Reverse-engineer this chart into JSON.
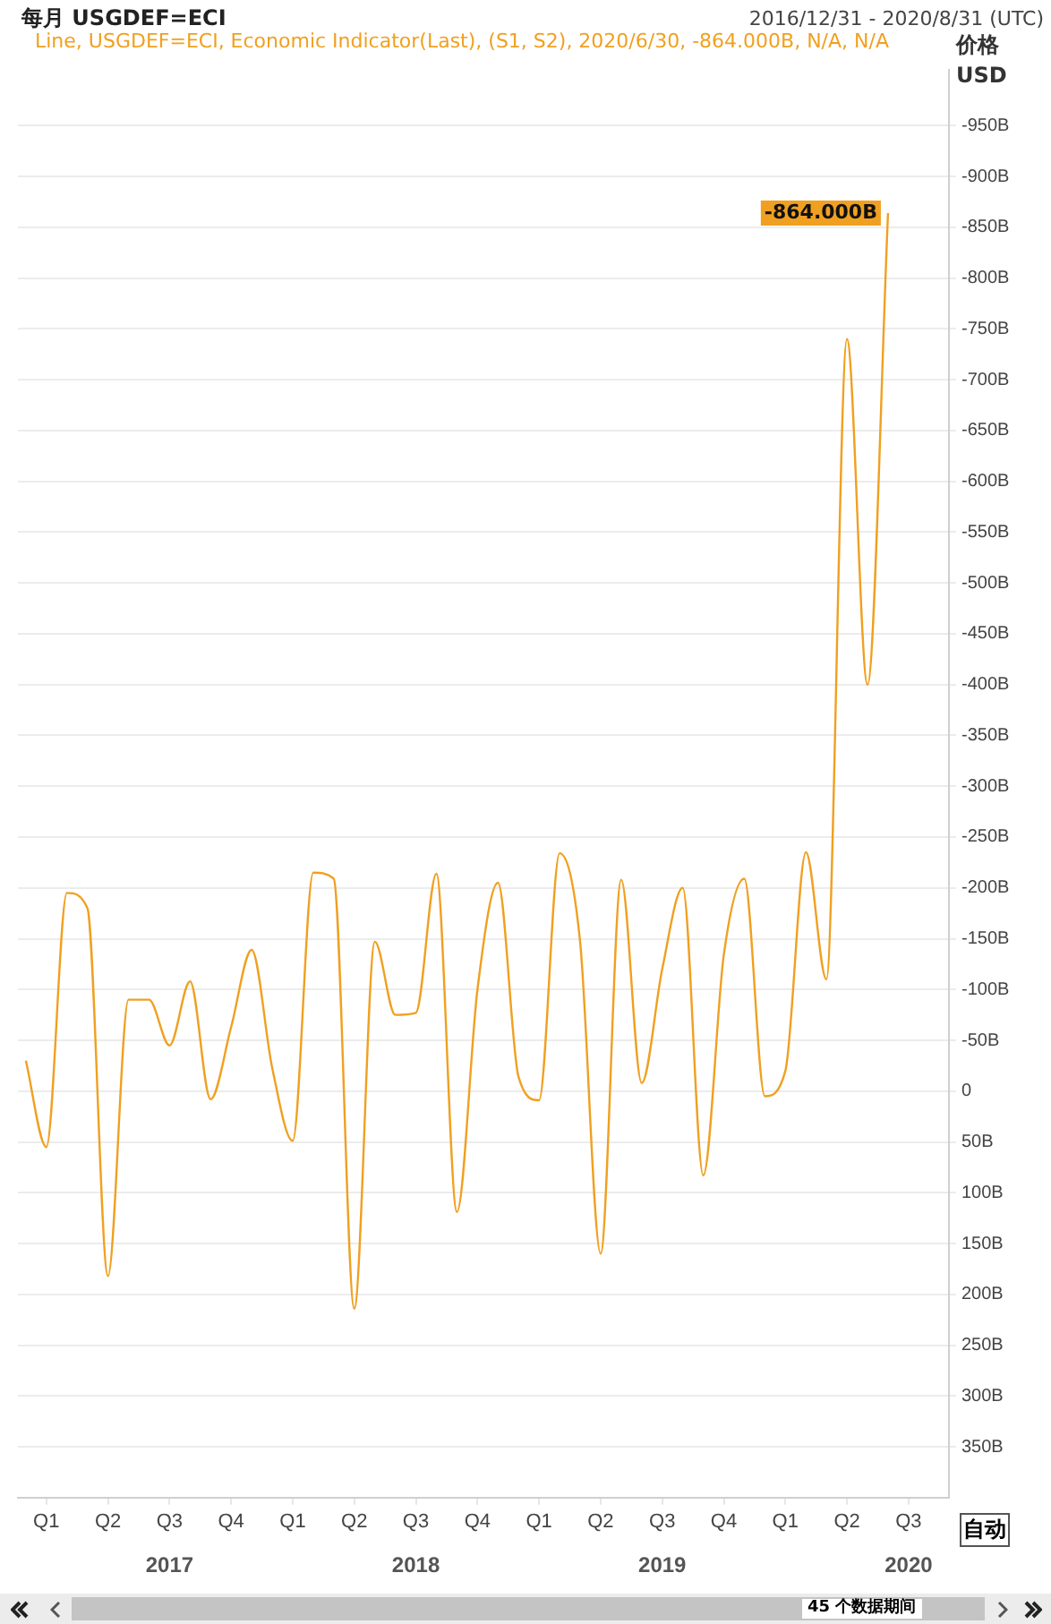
{
  "chart_data": {
    "type": "line",
    "title": "每月 USGDEF=ECI",
    "subtitle": "2016/12/31 - 2020/8/31 (UTC)",
    "ylabel": "价格 USD",
    "x": [
      "2016-12",
      "2017-01",
      "2017-02",
      "2017-03",
      "2017-04",
      "2017-05",
      "2017-06",
      "2017-07",
      "2017-08",
      "2017-09",
      "2017-10",
      "2017-11",
      "2017-12",
      "2018-01",
      "2018-02",
      "2018-03",
      "2018-04",
      "2018-05",
      "2018-06",
      "2018-07",
      "2018-08",
      "2018-09",
      "2018-10",
      "2018-11",
      "2018-12",
      "2019-01",
      "2019-02",
      "2019-03",
      "2019-04",
      "2019-05",
      "2019-06",
      "2019-07",
      "2019-08",
      "2019-09",
      "2019-10",
      "2019-11",
      "2019-12",
      "2020-01",
      "2020-02",
      "2020-03",
      "2020-04",
      "2020-05",
      "2020-06"
    ],
    "series": [
      {
        "name": "Line, USGDEF=ECI, Economic Indicator(Last), (S1, S2), 2020/6/30, -864.000B, N/A, N/A",
        "color": "#f0a020",
        "values": [
          -30,
          55,
          -195,
          -180,
          182,
          -90,
          -90,
          -45,
          -108,
          8,
          -63,
          -139,
          -23,
          49,
          -215,
          -209,
          214,
          -147,
          -75,
          -77,
          -214,
          119,
          -100,
          -205,
          -14,
          9,
          -234,
          -147,
          160,
          -208,
          -8,
          -120,
          -200,
          83,
          -134,
          -209,
          5,
          -20,
          -235,
          -110,
          -740,
          -400,
          -864
        ],
        "value_labels": [
          null,
          null,
          null,
          null,
          null,
          null,
          null,
          null,
          null,
          null,
          null,
          null,
          null,
          null,
          null,
          null,
          null,
          null,
          null,
          null,
          null,
          null,
          null,
          null,
          null,
          null,
          null,
          null,
          null,
          null,
          null,
          null,
          null,
          null,
          null,
          null,
          null,
          null,
          null,
          null,
          null,
          null,
          "-864.000B"
        ]
      }
    ],
    "xlim": [
      "2016-11-20",
      "2020-08-31"
    ],
    "xticks": [
      {
        "value": "2017-01",
        "label": "Q1"
      },
      {
        "value": "2017-04",
        "label": "Q2"
      },
      {
        "value": "2017-07",
        "label": "Q3"
      },
      {
        "value": "2017-10",
        "label": "Q4"
      },
      {
        "value": "2018-01",
        "label": "Q1"
      },
      {
        "value": "2018-04",
        "label": "Q2"
      },
      {
        "value": "2018-07",
        "label": "Q3"
      },
      {
        "value": "2018-10",
        "label": "Q4"
      },
      {
        "value": "2019-01",
        "label": "Q1"
      },
      {
        "value": "2019-04",
        "label": "Q2"
      },
      {
        "value": "2019-07",
        "label": "Q3"
      },
      {
        "value": "2019-10",
        "label": "Q4"
      },
      {
        "value": "2020-01",
        "label": "Q1"
      },
      {
        "value": "2020-04",
        "label": "Q2"
      },
      {
        "value": "2020-07",
        "label": "Q3"
      }
    ],
    "ylim": [
      400,
      -1005
    ],
    "yticks": [
      {
        "value": -950,
        "label": "-950B"
      },
      {
        "value": -900,
        "label": "-900B"
      },
      {
        "value": -850,
        "label": "-850B"
      },
      {
        "value": -800,
        "label": "-800B"
      },
      {
        "value": -750,
        "label": "-750B"
      },
      {
        "value": -700,
        "label": "-700B"
      },
      {
        "value": -650,
        "label": "-650B"
      },
      {
        "value": -600,
        "label": "-600B"
      },
      {
        "value": -550,
        "label": "-550B"
      },
      {
        "value": -500,
        "label": "-500B"
      },
      {
        "value": -450,
        "label": "-450B"
      },
      {
        "value": -400,
        "label": "-400B"
      },
      {
        "value": -350,
        "label": "-350B"
      },
      {
        "value": -300,
        "label": "-300B"
      },
      {
        "value": -250,
        "label": "-250B"
      },
      {
        "value": -200,
        "label": "-200B"
      },
      {
        "value": -150,
        "label": "-150B"
      },
      {
        "value": -100,
        "label": "-100B"
      },
      {
        "value": -50,
        "label": "-50B"
      },
      0,
      {
        "value": 50,
        "label": "50B"
      },
      {
        "value": 100,
        "label": "100B"
      },
      {
        "value": 150,
        "label": "150B"
      },
      {
        "value": 200,
        "label": "200B"
      },
      {
        "value": 250,
        "label": "250B"
      },
      {
        "value": 300,
        "label": "300B"
      },
      {
        "value": 350,
        "label": "350B"
      }
    ],
    "x2lim": [
      "2016-11-20",
      "2020-08-31"
    ],
    "x2ticks": [
      {
        "value": "2017-07",
        "label": "2017"
      },
      {
        "value": "2018-07",
        "label": "2018"
      },
      {
        "value": "2019-07",
        "label": "2019"
      },
      {
        "value": "2020-07",
        "label": "2020"
      }
    ],
    "annotations": [
      "自动",
      "45 个数据期间"
    ],
    "grid": "y",
    "legend": "top left",
    "marker": "none",
    "line_style": "solid"
  }
}
